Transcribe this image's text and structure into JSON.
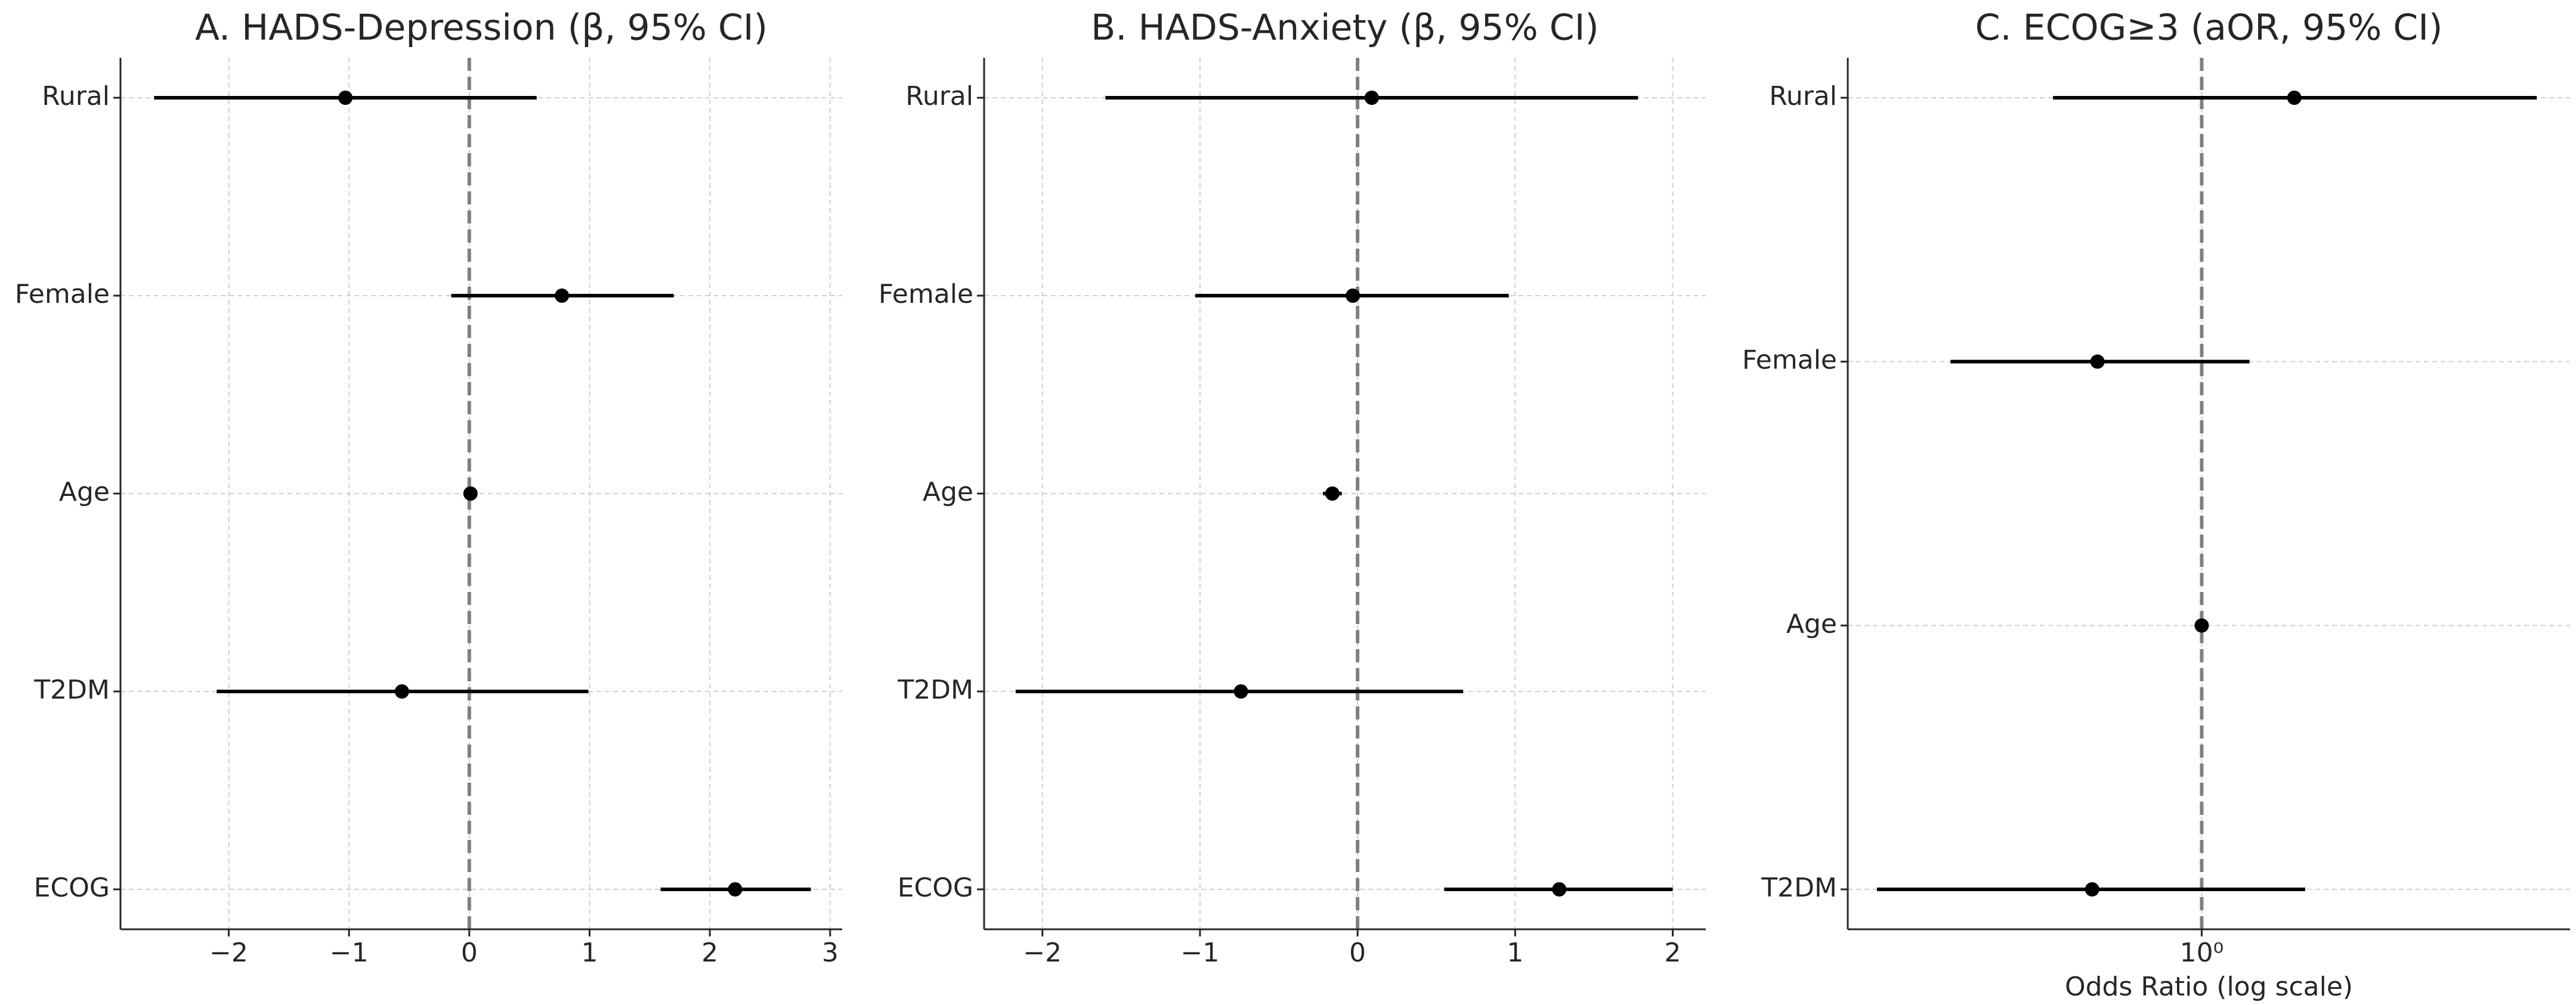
{
  "chart_data": [
    {
      "type": "forest",
      "title": "A. HADS-Depression (β, 95% CI)",
      "categories": [
        "Rural",
        "Female",
        "Age",
        "T2DM",
        "ECOG"
      ],
      "values": [
        -1.03,
        0.77,
        0.01,
        -0.56,
        2.21
      ],
      "lower": [
        -2.62,
        -0.15,
        -0.02,
        -2.1,
        1.59
      ],
      "upper": [
        0.56,
        1.7,
        0.04,
        0.99,
        2.84
      ],
      "xlim": [
        -2.9,
        3.1
      ],
      "xticks": [
        {
          "value": -2,
          "label": "−2"
        },
        {
          "value": -1,
          "label": "−1"
        },
        0,
        1,
        2,
        3
      ],
      "refline": 0,
      "grid": true,
      "color": "#000000"
    },
    {
      "type": "forest",
      "title": "B. HADS-Anxiety (β, 95% CI)",
      "categories": [
        "Rural",
        "Female",
        "Age",
        "T2DM",
        "ECOG"
      ],
      "values": [
        0.09,
        -0.03,
        -0.16,
        -0.74,
        1.28
      ],
      "lower": [
        -1.6,
        -1.03,
        -0.22,
        -2.17,
        0.55
      ],
      "upper": [
        1.78,
        0.96,
        -0.1,
        0.67,
        2.0
      ],
      "xlim": [
        -2.37,
        2.21
      ],
      "xticks": [
        {
          "value": -2,
          "label": "−2"
        },
        {
          "value": -1,
          "label": "−1"
        },
        0,
        1,
        2
      ],
      "refline": 0,
      "grid": true,
      "color": "#000000"
    },
    {
      "type": "forest",
      "title": "C. ECOG≥3 (aOR, 95% CI)",
      "categories": [
        "Rural",
        "Female",
        "Age",
        "T2DM"
      ],
      "values": [
        1.54,
        0.615,
        1.0,
        0.6
      ],
      "lower": [
        0.5,
        0.31,
        0.98,
        0.22
      ],
      "upper": [
        4.77,
        1.25,
        1.02,
        1.62
      ],
      "xlim": [
        0.192,
        5.57
      ],
      "xticks": [
        {
          "value": 1,
          "label": "10⁰"
        }
      ],
      "xscale": "log",
      "xlabel": "Odds Ratio (log scale)",
      "refline": 1,
      "grid": true,
      "color": "#000000"
    }
  ]
}
